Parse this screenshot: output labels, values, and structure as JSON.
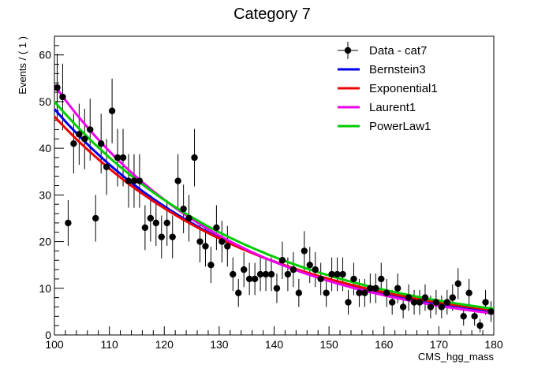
{
  "chart_data": {
    "type": "scatter",
    "title": "Category 7",
    "xlabel": "CMS_hgg_mass",
    "ylabel": "Events / ( 1 )",
    "xlim": [
      100,
      180
    ],
    "ylim": [
      0,
      64
    ],
    "xticks": [
      "100",
      "110",
      "120",
      "130",
      "140",
      "150",
      "160",
      "170",
      "180"
    ],
    "yticks": [
      "0",
      "10",
      "20",
      "30",
      "40",
      "50",
      "60"
    ],
    "legend_position": "top-right",
    "data_series": {
      "name": "Data - cat7",
      "color": "#000000",
      "x": [
        100.5,
        101.5,
        102.5,
        103.5,
        104.5,
        105.5,
        106.5,
        107.5,
        108.5,
        109.5,
        110.5,
        111.5,
        112.5,
        113.5,
        114.5,
        115.5,
        116.5,
        117.5,
        118.5,
        119.5,
        120.5,
        121.5,
        122.5,
        123.5,
        124.5,
        125.5,
        126.5,
        127.5,
        128.5,
        129.5,
        130.5,
        131.5,
        132.5,
        133.5,
        134.5,
        135.5,
        136.5,
        137.5,
        138.5,
        139.5,
        140.5,
        141.5,
        142.5,
        143.5,
        144.5,
        145.5,
        146.5,
        147.5,
        148.5,
        149.5,
        150.5,
        151.5,
        152.5,
        153.5,
        154.5,
        155.5,
        156.5,
        157.5,
        158.5,
        159.5,
        160.5,
        161.5,
        162.5,
        163.5,
        164.5,
        165.5,
        166.5,
        167.5,
        168.5,
        169.5,
        170.5,
        171.5,
        172.5,
        173.5,
        174.5,
        175.5,
        176.5,
        177.5,
        178.5,
        179.5
      ],
      "y": [
        53,
        51,
        24,
        41,
        43,
        42,
        44,
        25,
        41,
        36,
        48,
        38,
        38,
        33,
        33,
        33,
        23,
        25,
        24,
        21,
        24,
        21,
        33,
        27,
        25,
        38,
        20,
        19,
        15,
        23,
        20,
        19,
        13,
        9,
        14,
        12,
        12,
        13,
        13,
        13,
        10,
        16,
        13,
        14,
        9,
        18,
        15,
        14,
        12,
        9,
        13,
        13,
        13,
        7,
        12,
        9,
        9,
        10,
        10,
        12,
        9,
        7,
        10,
        6,
        8,
        7,
        7,
        8,
        6,
        7,
        6,
        7,
        8,
        11,
        4,
        9,
        4,
        2,
        7,
        5
      ]
    },
    "fits": [
      {
        "name": "Bernstein3",
        "color": "#0000ee",
        "y_at_100": 48.4,
        "y_at_180": 5.1
      },
      {
        "name": "Exponential1",
        "color": "#ee0000",
        "y_at_100": 46.8,
        "y_at_180": 5.3
      },
      {
        "name": "Laurent1",
        "color": "#ee00ee",
        "y_at_100": 53.5,
        "y_at_180": 4.6
      },
      {
        "name": "PowerLaw1",
        "color": "#00cc00",
        "y_at_100": 50.0,
        "y_at_180": 5.6
      }
    ]
  }
}
